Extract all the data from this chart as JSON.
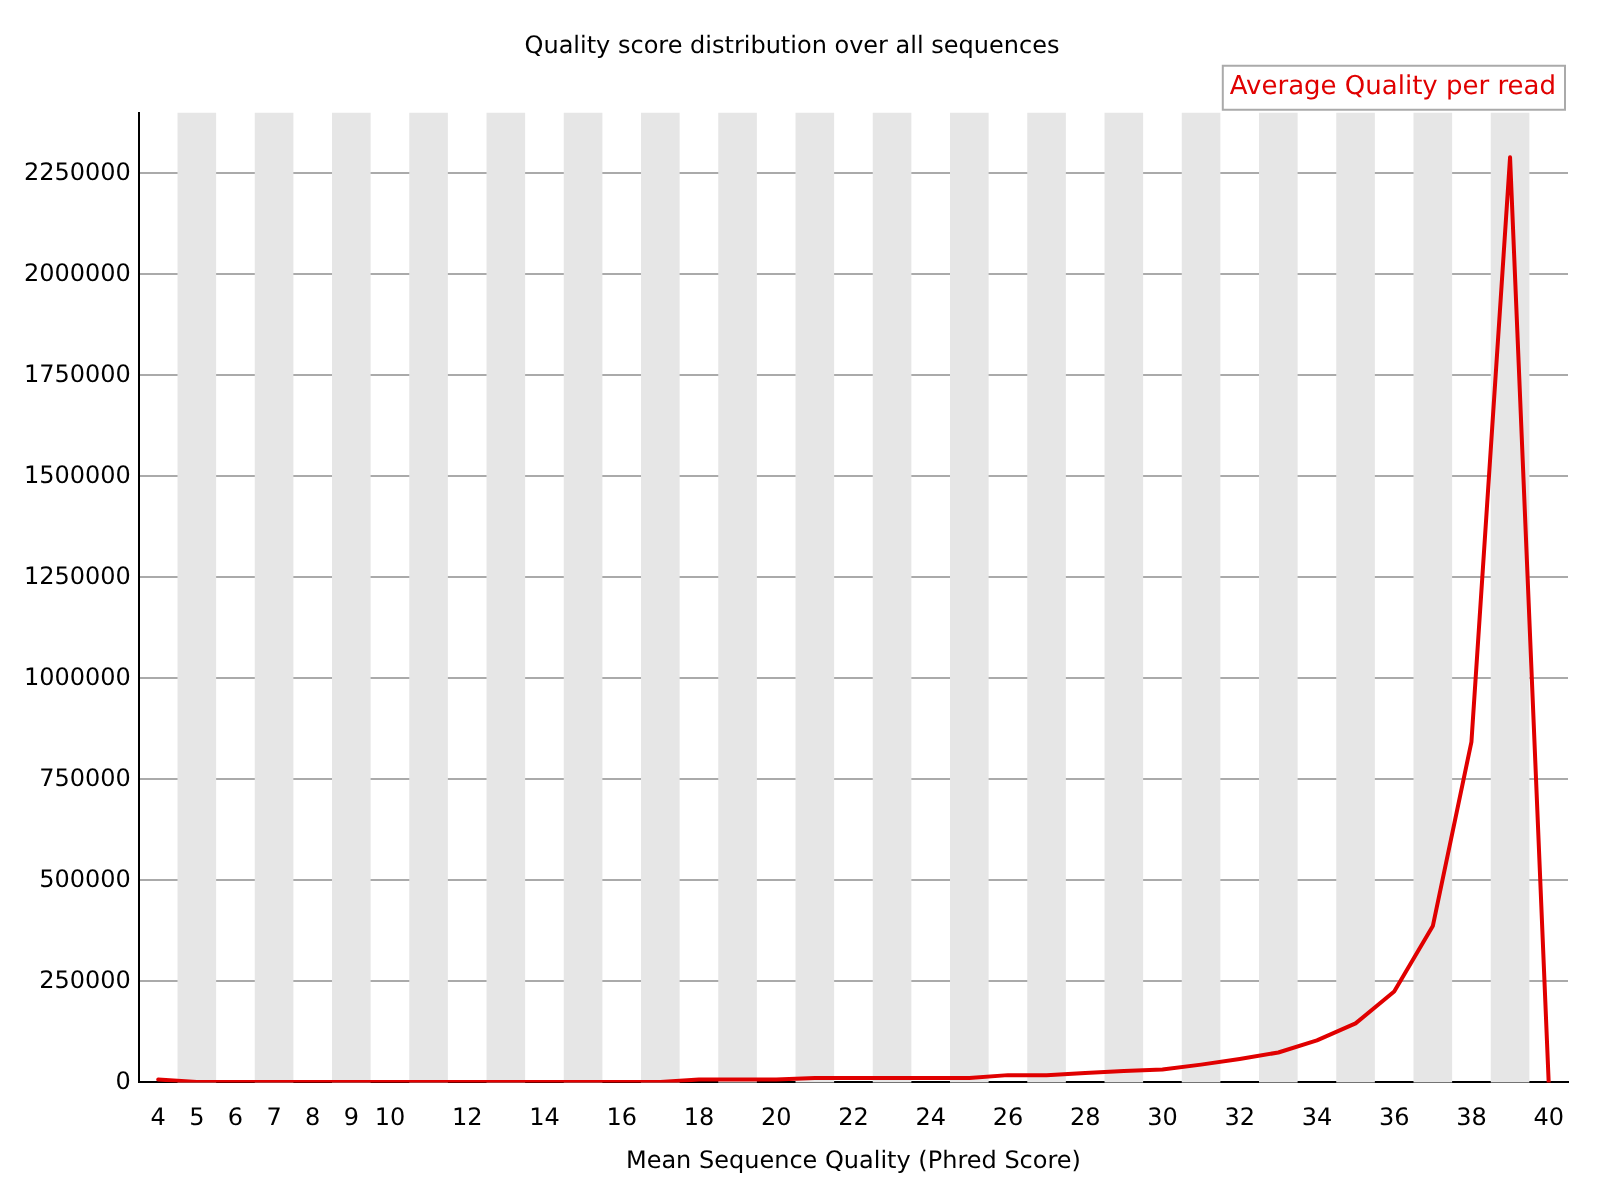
{
  "chart_data": {
    "type": "line",
    "title": "Quality score distribution over all sequences",
    "xlabel": "Mean Sequence Quality (Phred Score)",
    "categories": [
      "4",
      "5",
      "6",
      "7",
      "8",
      "9",
      "10",
      null,
      "12",
      null,
      "14",
      null,
      "16",
      null,
      "18",
      null,
      "20",
      null,
      "22",
      null,
      "24",
      null,
      "26",
      null,
      "28",
      null,
      "30",
      null,
      "32",
      null,
      "34",
      null,
      "36",
      null,
      "38",
      null,
      "40"
    ],
    "series": [
      {
        "name": "Average Quality per read",
        "color": "#e00000",
        "values": [
          7000,
          1000,
          1000,
          1000,
          1000,
          1000,
          1000,
          1000,
          1000,
          1000,
          1000,
          1000,
          1000,
          1000,
          7000,
          7000,
          7000,
          11000,
          11000,
          11000,
          11000,
          11000,
          18000,
          18000,
          23000,
          28000,
          32000,
          44000,
          58000,
          74000,
          104000,
          146000,
          225000,
          387000,
          843000,
          2290000,
          0
        ]
      }
    ],
    "ylim": [
      0,
      2400000
    ],
    "yticks": [
      0,
      250000,
      500000,
      750000,
      1000000,
      1250000,
      1500000,
      1750000,
      2000000,
      2250000
    ],
    "grid": "y",
    "legend": "top right",
    "marker": "none",
    "line_style": "solid"
  }
}
